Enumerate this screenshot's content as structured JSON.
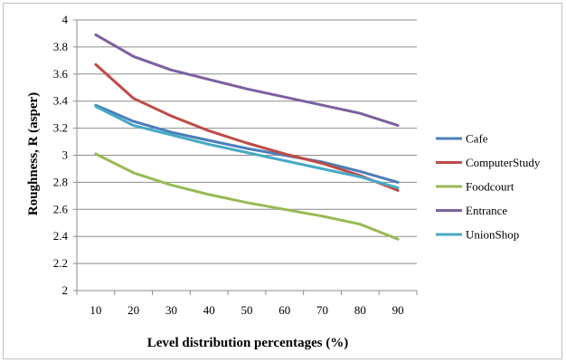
{
  "chart_data": {
    "type": "line",
    "xlabel": "Level distribution percentages (%)",
    "ylabel": "Roughness, R (asper)",
    "categories": [
      "10",
      "20",
      "30",
      "40",
      "50",
      "60",
      "70",
      "80",
      "90"
    ],
    "ylim": [
      2,
      4
    ],
    "yticks": [
      2,
      2.2,
      2.4,
      2.6,
      2.8,
      3,
      3.2,
      3.4,
      3.6,
      3.8,
      4
    ],
    "ytick_labels": [
      "2",
      "2.2",
      "2.4",
      "2.6",
      "2.8",
      "3",
      "3.2",
      "3.4",
      "3.6",
      "3.8",
      "4"
    ],
    "grid": "horizontal",
    "legend_position": "right",
    "series": [
      {
        "name": "Cafe",
        "color": "#4a7ebb",
        "values": [
          3.37,
          3.25,
          3.17,
          3.11,
          3.05,
          3.0,
          2.95,
          2.88,
          2.8
        ]
      },
      {
        "name": "ComputerStudy",
        "color": "#be4b48",
        "values": [
          3.67,
          3.42,
          3.29,
          3.18,
          3.09,
          3.01,
          2.94,
          2.85,
          2.74
        ]
      },
      {
        "name": "Foodcourt",
        "color": "#98b954",
        "values": [
          3.01,
          2.87,
          2.78,
          2.71,
          2.65,
          2.6,
          2.55,
          2.49,
          2.38
        ]
      },
      {
        "name": "Entrance",
        "color": "#7d60a0",
        "values": [
          3.89,
          3.73,
          3.63,
          3.56,
          3.49,
          3.43,
          3.37,
          3.31,
          3.22
        ]
      },
      {
        "name": "UnionShop",
        "color": "#46aac5",
        "values": [
          3.36,
          3.22,
          3.15,
          3.08,
          3.02,
          2.96,
          2.9,
          2.84,
          2.76
        ]
      }
    ]
  }
}
